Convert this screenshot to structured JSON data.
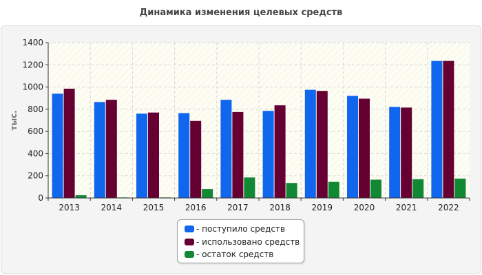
{
  "title": "Динамика изменения целевых средств",
  "chart_data": {
    "type": "bar",
    "ylabel": "тыс.",
    "xlabel": "",
    "ylim": [
      0,
      1400
    ],
    "yticks": [
      0,
      200,
      400,
      600,
      800,
      1000,
      1200,
      1400
    ],
    "grid": true,
    "legend_position": "bottom",
    "categories": [
      "2013",
      "2014",
      "2015",
      "2016",
      "2017",
      "2018",
      "2019",
      "2020",
      "2021",
      "2022"
    ],
    "series": [
      {
        "name": "- поступило средств",
        "color": "#1166ee",
        "values": [
          940,
          865,
          760,
          765,
          885,
          785,
          975,
          920,
          820,
          1235
        ]
      },
      {
        "name": "- использовано средств",
        "color": "#660033",
        "values": [
          985,
          885,
          770,
          695,
          775,
          835,
          965,
          895,
          815,
          1235
        ]
      },
      {
        "name": "- остаток средств",
        "color": "#118833",
        "values": [
          25,
          5,
          5,
          80,
          185,
          135,
          145,
          165,
          170,
          175
        ]
      }
    ]
  }
}
